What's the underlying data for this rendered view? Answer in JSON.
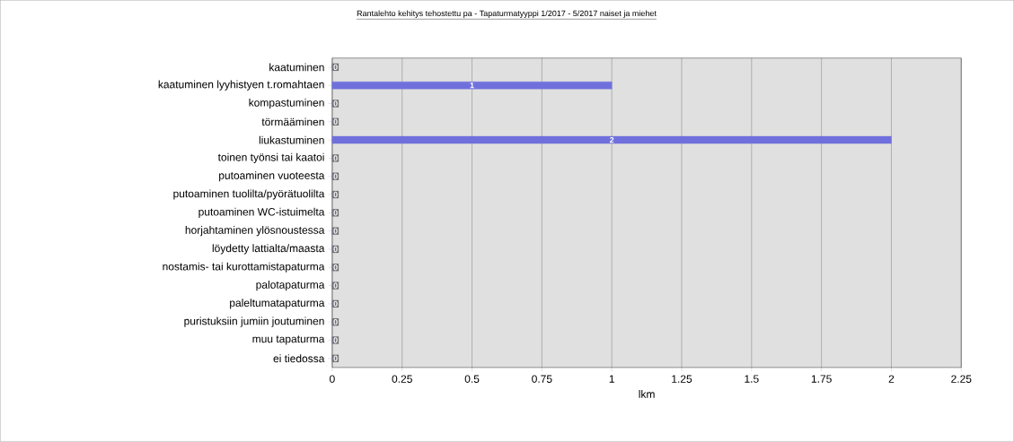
{
  "chart_data": {
    "type": "bar",
    "orientation": "horizontal",
    "title": "Rantalehto kehitys tehostettu pa - Tapaturmatyyppi 1/2017 - 5/2017 naiset ja miehet",
    "xlabel": "lkm",
    "categories": [
      "kaatuminen",
      "kaatuminen lyyhistyen t.romahtaen",
      "kompastuminen",
      "törmääminen",
      "liukastuminen",
      "toinen työnsi tai kaatoi",
      "putoaminen vuoteesta",
      "putoaminen tuolilta/pyörätuolilta",
      "putoaminen WC-istuimelta",
      "horjahtaminen ylösnoustessa",
      "löydetty lattialta/maasta",
      "nostamis- tai kurottamistapaturma",
      "palotapaturma",
      "paleltumatapaturma",
      "puristuksiin jumiin joutuminen",
      "muu tapaturma",
      "ei tiedossa"
    ],
    "values": [
      0,
      1,
      0,
      0,
      2,
      0,
      0,
      0,
      0,
      0,
      0,
      0,
      0,
      0,
      0,
      0,
      0
    ],
    "color": "#7070dd",
    "xlim": [
      0,
      2.25
    ],
    "xticks": [
      0,
      0.25,
      0.5,
      0.75,
      1,
      1.25,
      1.5,
      1.75,
      2,
      2.25
    ],
    "grid": "x",
    "data_labels": true
  }
}
